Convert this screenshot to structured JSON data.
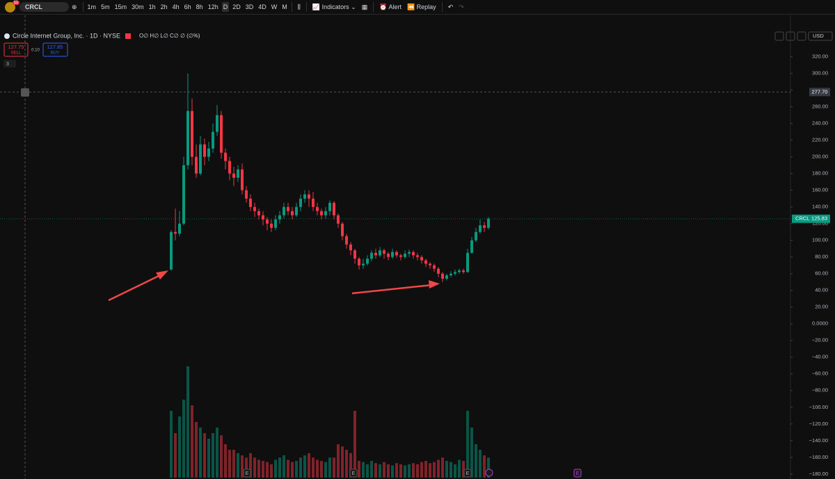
{
  "toolbar": {
    "badge": "11",
    "symbol": "CRCL",
    "timeframes": [
      "1m",
      "5m",
      "15m",
      "30m",
      "1h",
      "2h",
      "4h",
      "6h",
      "8h",
      "12h",
      "D",
      "2D",
      "3D",
      "4D",
      "W",
      "M"
    ],
    "active_timeframe": 10,
    "indicators": "Indicators",
    "alert": "Alert",
    "replay": "Replay"
  },
  "legend": {
    "title": "Circle Internet Group, Inc. · 1D · NYSE",
    "ohlc": "O∅ H∅ L∅ C∅ ∅ (∅%)",
    "sell_price": "127.75",
    "sell": "SELL",
    "spread": "0.10",
    "buy_price": "127.85",
    "buy": "BUY",
    "indicator_count": "3"
  },
  "currency": "USD",
  "chart_data": {
    "type": "candlestick",
    "open": [
      65,
      110,
      108,
      120,
      190,
      255,
      200,
      180,
      215,
      200,
      210,
      230,
      250,
      205,
      195,
      180,
      175,
      185,
      160,
      150,
      140,
      135,
      130,
      125,
      120,
      115,
      125,
      130,
      140,
      135,
      130,
      140,
      150,
      155,
      150,
      140,
      135,
      130,
      135,
      145,
      130,
      120,
      105,
      95,
      88,
      78,
      70,
      72,
      78,
      85,
      82,
      88,
      84,
      80,
      86,
      82,
      80,
      84,
      86,
      82,
      80,
      76,
      72,
      70,
      66,
      60,
      54,
      58,
      60,
      62,
      64,
      62,
      85,
      100,
      110,
      118,
      115
    ],
    "high": [
      112,
      138,
      135,
      200,
      300,
      270,
      215,
      225,
      222,
      218,
      240,
      262,
      255,
      210,
      200,
      188,
      190,
      192,
      165,
      155,
      145,
      138,
      135,
      128,
      125,
      130,
      135,
      145,
      145,
      140,
      145,
      155,
      160,
      160,
      158,
      145,
      138,
      140,
      148,
      147,
      132,
      122,
      108,
      98,
      90,
      80,
      78,
      82,
      88,
      90,
      92,
      90,
      86,
      90,
      88,
      84,
      88,
      89,
      88,
      85,
      82,
      78,
      74,
      72,
      68,
      62,
      60,
      63,
      65,
      66,
      66,
      90,
      104,
      115,
      125,
      122,
      128
    ],
    "low": [
      64,
      100,
      105,
      118,
      185,
      190,
      175,
      178,
      190,
      195,
      205,
      225,
      198,
      185,
      172,
      165,
      170,
      155,
      145,
      135,
      128,
      125,
      118,
      112,
      110,
      112,
      120,
      126,
      130,
      125,
      128,
      135,
      145,
      140,
      135,
      130,
      125,
      126,
      130,
      125,
      115,
      100,
      90,
      82,
      72,
      65,
      66,
      70,
      75,
      78,
      80,
      78,
      76,
      78,
      79,
      76,
      78,
      80,
      78,
      76,
      72,
      68,
      66,
      62,
      56,
      50,
      52,
      56,
      58,
      60,
      60,
      61,
      84,
      98,
      108,
      110,
      113
    ],
    "close": [
      110,
      108,
      120,
      190,
      255,
      200,
      180,
      215,
      200,
      210,
      230,
      250,
      205,
      195,
      180,
      175,
      185,
      160,
      150,
      140,
      135,
      130,
      125,
      120,
      115,
      125,
      130,
      140,
      135,
      130,
      140,
      150,
      155,
      150,
      140,
      135,
      130,
      135,
      145,
      130,
      120,
      105,
      95,
      88,
      78,
      70,
      72,
      78,
      85,
      82,
      88,
      84,
      80,
      86,
      82,
      80,
      84,
      86,
      82,
      80,
      76,
      72,
      70,
      66,
      60,
      54,
      58,
      60,
      62,
      64,
      62,
      85,
      100,
      110,
      118,
      115,
      125.83
    ],
    "volume": [
      60,
      40,
      55,
      70,
      100,
      65,
      50,
      45,
      40,
      35,
      40,
      45,
      38,
      30,
      25,
      25,
      22,
      20,
      18,
      22,
      18,
      16,
      15,
      14,
      12,
      16,
      18,
      20,
      16,
      14,
      15,
      18,
      20,
      22,
      18,
      16,
      15,
      14,
      18,
      18,
      30,
      28,
      25,
      22,
      60,
      15,
      14,
      12,
      15,
      13,
      12,
      14,
      12,
      11,
      13,
      12,
      11,
      12,
      13,
      12,
      14,
      15,
      13,
      14,
      16,
      18,
      15,
      14,
      12,
      16,
      15,
      60,
      45,
      30,
      25,
      20,
      18
    ],
    "vlim": [
      0,
      100
    ],
    "ylim": [
      -186,
      353
    ],
    "yticks": [
      {
        "value": 320,
        "label": "320.00"
      },
      {
        "value": 300,
        "label": "300.00"
      },
      {
        "value": 280,
        "label": "280.00"
      },
      {
        "value": 260,
        "label": "260.00"
      },
      {
        "value": 240,
        "label": "240.00"
      },
      {
        "value": 220,
        "label": "220.00"
      },
      {
        "value": 200,
        "label": "200.00"
      },
      {
        "value": 180,
        "label": "180.00"
      },
      {
        "value": 160,
        "label": "160.00"
      },
      {
        "value": 140,
        "label": "140.00"
      },
      {
        "value": 120,
        "label": "120.00"
      },
      {
        "value": 100,
        "label": "100.00"
      },
      {
        "value": 80,
        "label": "80.00"
      },
      {
        "value": 60,
        "label": "60.00"
      },
      {
        "value": 40,
        "label": "40.00"
      },
      {
        "value": 20,
        "label": "20.00"
      },
      {
        "value": 0,
        "label": "0.0000"
      },
      {
        "value": -20,
        "label": "−20.00"
      },
      {
        "value": -40,
        "label": "−40.00"
      },
      {
        "value": -60,
        "label": "−60.00"
      },
      {
        "value": -80,
        "label": "−80.00"
      },
      {
        "value": -100,
        "label": "−100.00"
      },
      {
        "value": -120,
        "label": "−120.00"
      },
      {
        "value": -140,
        "label": "−140.00"
      },
      {
        "value": -160,
        "label": "−160.00"
      },
      {
        "value": -180,
        "label": "−180.00"
      }
    ],
    "crosshair": {
      "value": 277.7,
      "label": "277.70"
    },
    "last_price": {
      "symbol": "CRCL",
      "value": 125.83,
      "label": "125.83"
    },
    "colors": {
      "up": "#089981",
      "down": "#f23645"
    },
    "events": [
      "E",
      "E",
      "E",
      "E"
    ]
  }
}
